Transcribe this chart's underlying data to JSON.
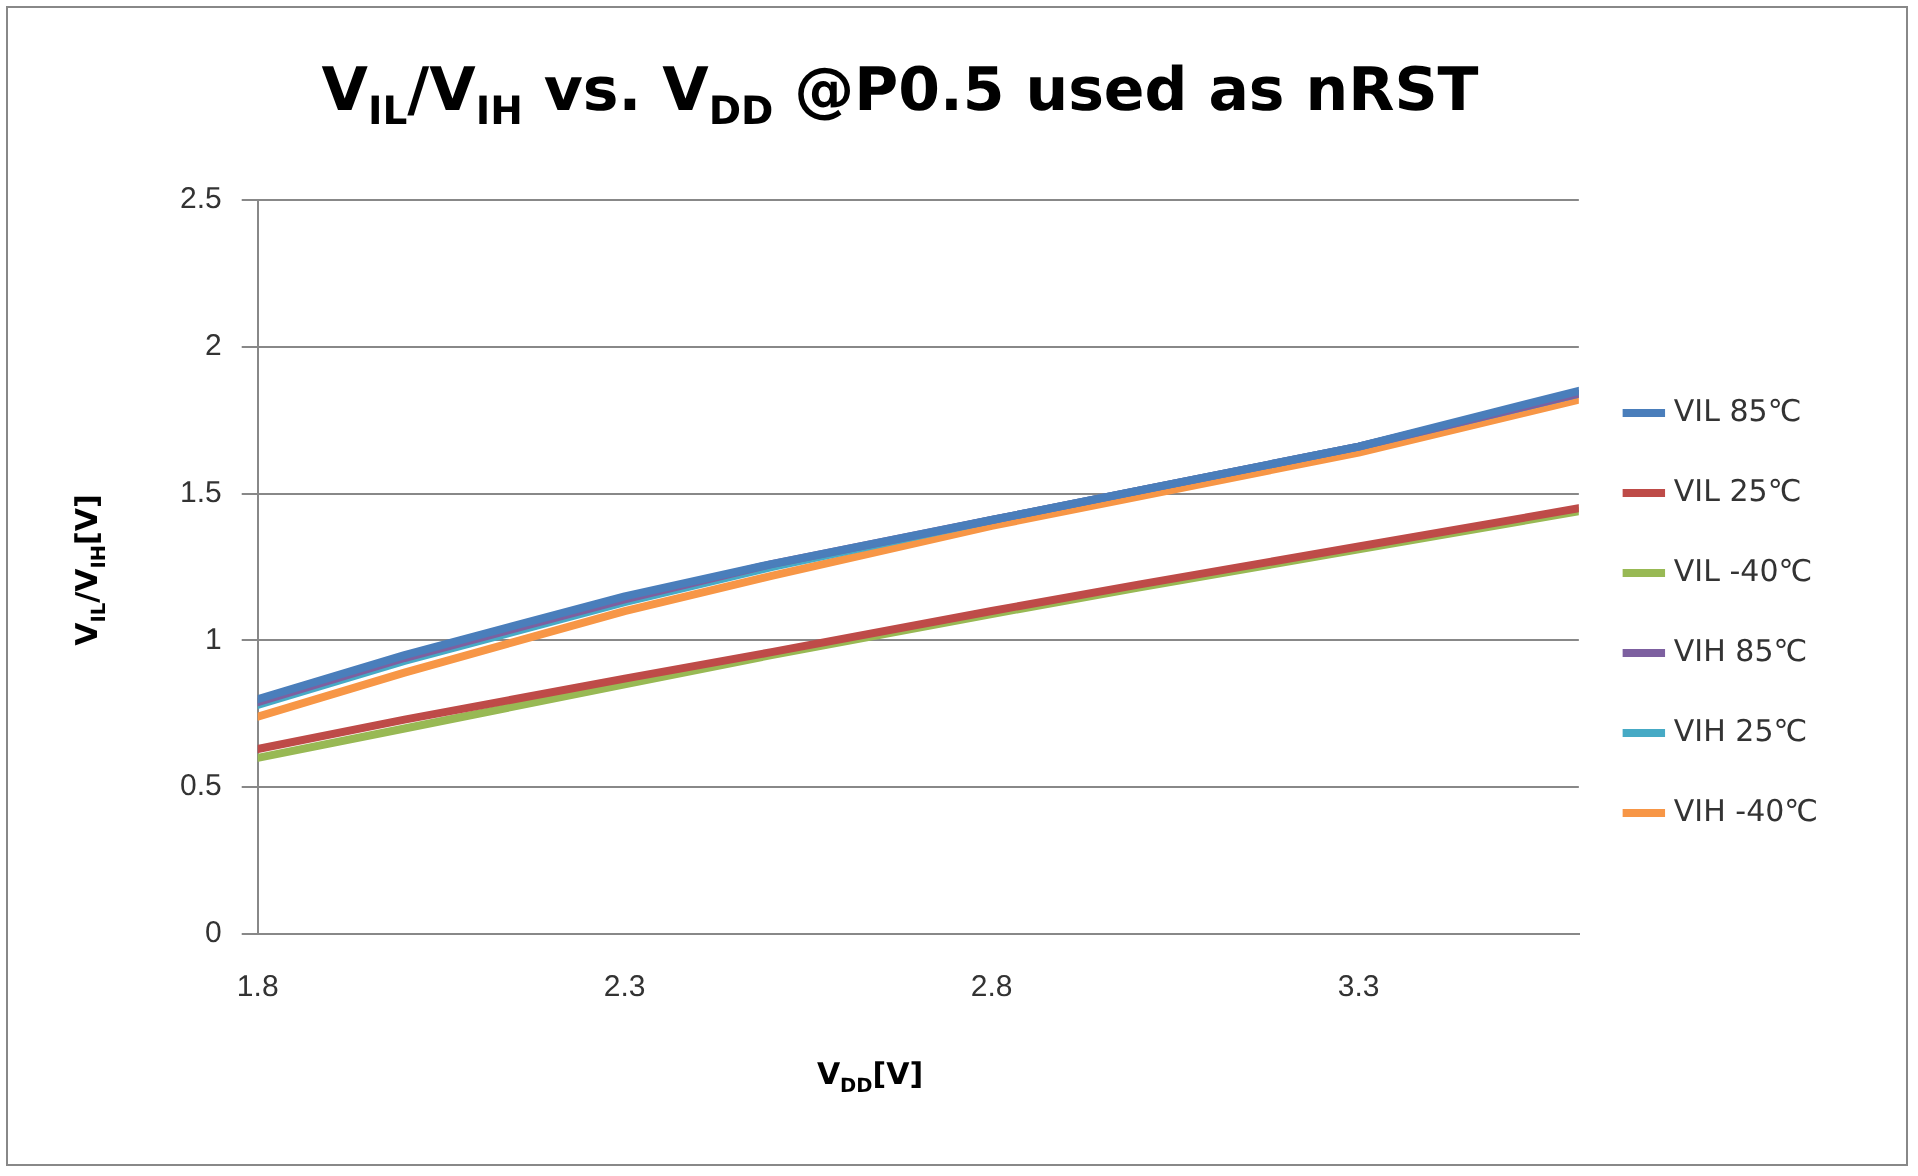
{
  "chart_data": {
    "type": "line",
    "title": "V$_{IL}$/V$_{IH}$ vs. V$_{DD}$ @P0.5 used as nRST",
    "xlabel": "V$_{DD}$[V]",
    "ylabel": "V$_{IL}$/V$_{IH}$[V]",
    "x": [
      1.8,
      2.0,
      2.3,
      2.5,
      2.8,
      3.0,
      3.3,
      3.6
    ],
    "series": [
      {
        "name": "VIL 85℃",
        "color": "#4a7ebb",
        "values": [
          0.8,
          0.95,
          1.15,
          1.26,
          1.41,
          1.51,
          1.66,
          1.85
        ]
      },
      {
        "name": "VIL 25℃",
        "color": "#be4b48",
        "values": [
          0.63,
          0.73,
          0.87,
          0.96,
          1.1,
          1.19,
          1.32,
          1.45
        ]
      },
      {
        "name": "VIL -40℃",
        "color": "#98b954",
        "values": [
          0.6,
          0.7,
          0.85,
          0.95,
          1.09,
          1.18,
          1.31,
          1.44
        ]
      },
      {
        "name": "VIH 85℃",
        "color": "#7d60a0",
        "values": [
          0.79,
          0.94,
          1.14,
          1.26,
          1.41,
          1.51,
          1.66,
          1.84
        ]
      },
      {
        "name": "VIH 25℃",
        "color": "#46aac5",
        "values": [
          0.78,
          0.93,
          1.13,
          1.25,
          1.41,
          1.51,
          1.66,
          1.84
        ]
      },
      {
        "name": "VIH -40℃",
        "color": "#f79646",
        "values": [
          0.74,
          0.89,
          1.1,
          1.22,
          1.39,
          1.49,
          1.64,
          1.82
        ]
      }
    ],
    "xlim": [
      1.8,
      3.6
    ],
    "xticks": [
      1.8,
      2.3,
      2.8,
      3.3
    ],
    "ylim": [
      0,
      2.5
    ],
    "yticks": [
      0,
      0.5,
      1,
      1.5,
      2,
      2.5
    ],
    "grid": "y",
    "legend": "right",
    "marker": "none",
    "line_style": "solid"
  }
}
